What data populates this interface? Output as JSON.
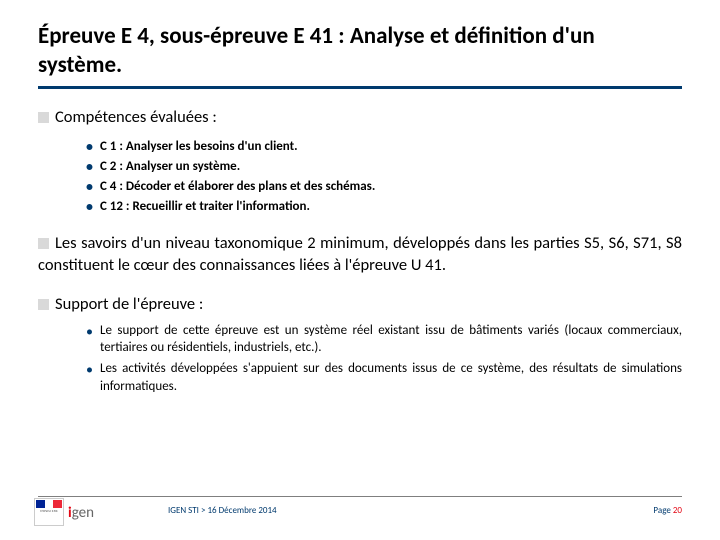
{
  "title": "Épreuve E 4, sous-épreuve E 41 : Analyse et définition d'un système.",
  "sections": {
    "competences": {
      "heading": "Compétences évaluées :",
      "items": [
        "C 1 : Analyser les besoins d'un client.",
        "C 2 : Analyser un système.",
        "C 4 : Décoder et élaborer des plans et des schémas.",
        "C 12 : Recueillir et traiter l'information."
      ]
    },
    "savoirs": {
      "text": "Les savoirs d'un niveau taxonomique 2 minimum, développés dans les parties S5, S6, S71, S8 constituent le cœur des connaissances liées à l'épreuve U 41."
    },
    "support": {
      "heading": "Support de l'épreuve :",
      "items": [
        "Le support de cette épreuve est un système réel existant issu de bâtiments variés (locaux commerciaux, tertiaires ou résidentiels, industriels, etc.).",
        "Les activités développées s'appuient sur des documents issus de ce système, des résultats de simulations informatiques."
      ]
    }
  },
  "footer": {
    "breadcrumb": "IGEN STI > 16 Décembre 2014",
    "page_label": "Page ",
    "page_number": "20",
    "logo_text": "gen"
  },
  "colors": {
    "accent": "#003a6e",
    "bullet_square": "#d9d9d9",
    "footer_accent": "#e30613"
  }
}
